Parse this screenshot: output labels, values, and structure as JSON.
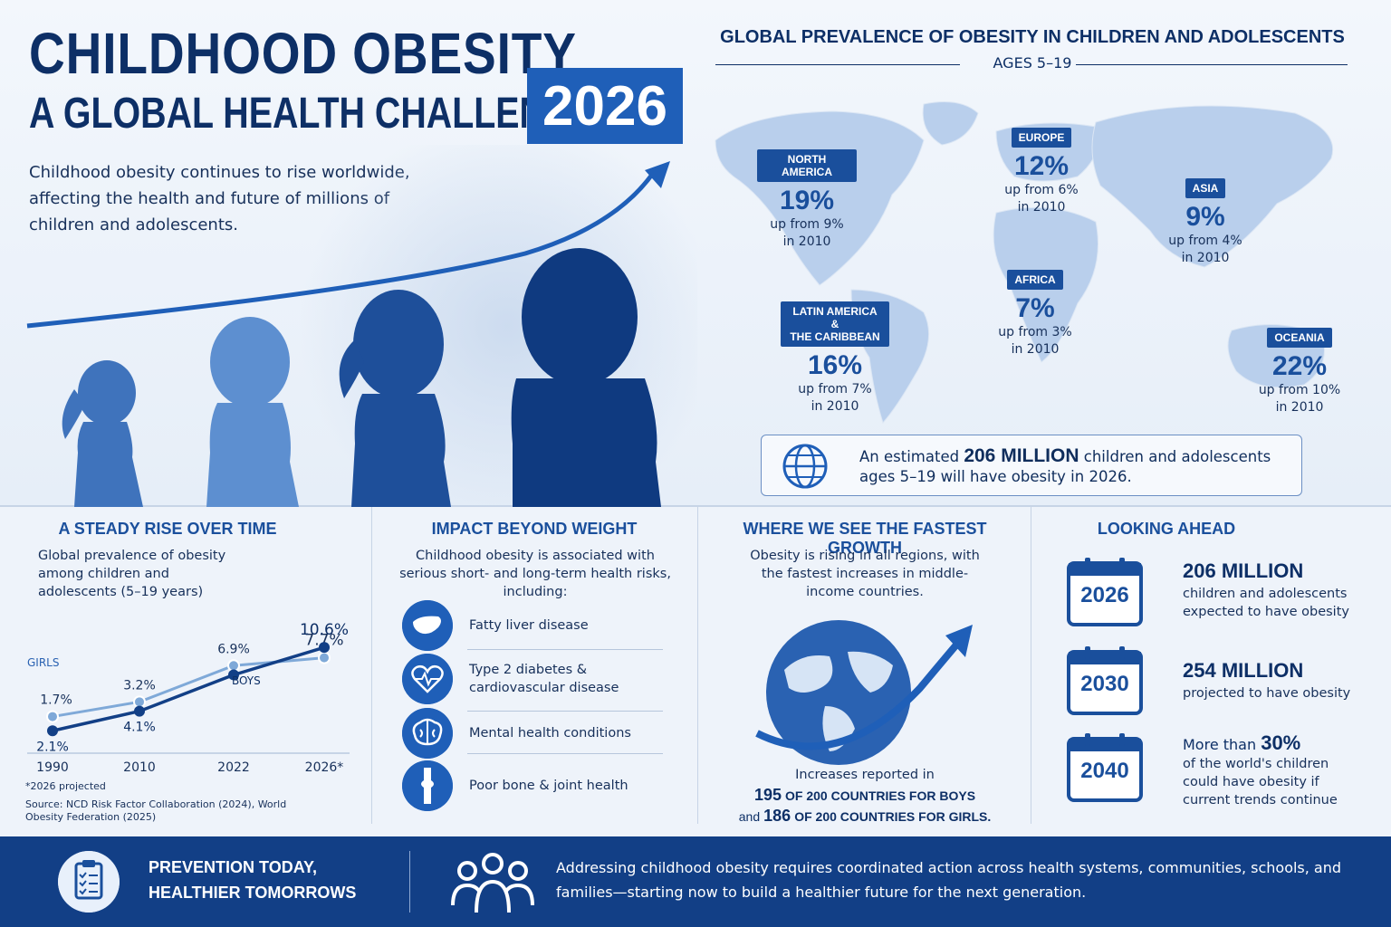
{
  "header": {
    "title_line1": "CHILDHOOD OBESITY",
    "title_line2": "A GLOBAL HEALTH CHALLENGE",
    "year": "2026",
    "intro": "Childhood obesity continues to rise worldwide, affecting the health and future of millions of children and adolescents."
  },
  "map": {
    "title": "GLOBAL PREVALENCE OF OBESITY IN CHILDREN AND ADOLESCENTS",
    "subtitle": "AGES 5–19",
    "regions": [
      {
        "name": "NORTH AMERICA",
        "pct": "19%",
        "up1": "up from 9%",
        "up2": "in 2010"
      },
      {
        "name": "EUROPE",
        "pct": "12%",
        "up1": "up from 6%",
        "up2": "in 2010"
      },
      {
        "name": "ASIA",
        "pct": "9%",
        "up1": "up from 4%",
        "up2": "in 2010"
      },
      {
        "name": "AFRICA",
        "pct": "7%",
        "up1": "up from 3%",
        "up2": "in 2010"
      },
      {
        "name_line1": "LATIN AMERICA &",
        "name_line2": "THE CARIBBEAN",
        "pct": "16%",
        "up1": "up from 7%",
        "up2": "in 2010"
      },
      {
        "name": "OCEANIA",
        "pct": "22%",
        "up1": "up from 10%",
        "up2": "in 2010"
      }
    ],
    "estimate_pre": "An estimated",
    "estimate_big": "206 MILLION",
    "estimate_post": "children and adolescents",
    "estimate_line2": "ages 5–19 will have obesity in 2026."
  },
  "rise": {
    "title": "A STEADY RISE OVER TIME",
    "desc": "Global prevalence of obesity among children and adolescents (5–19 years)",
    "footnote": "*2026 projected",
    "source": "Source: NCD Risk Factor Collaboration (2024), World Obesity Federation (2025)"
  },
  "chart_data": {
    "type": "line",
    "categories": [
      "1990",
      "2010",
      "2022",
      "2026*"
    ],
    "series": [
      {
        "name": "GIRLS",
        "values": [
          1.7,
          3.2,
          6.9,
          7.7
        ],
        "labels": [
          "1.7%",
          "3.2%",
          "6.9%",
          "7.7%"
        ],
        "color": "#7fa9d8"
      },
      {
        "name": "BOYS",
        "values": [
          2.1,
          4.1,
          7.8,
          10.6
        ],
        "labels": [
          "2.1%",
          "4.1%",
          "",
          "10.6%"
        ],
        "color": "#123f86"
      }
    ]
  },
  "impact": {
    "title": "IMPACT BEYOND WEIGHT",
    "desc": "Childhood obesity is associated with serious short- and long-term health risks, including:",
    "items": [
      {
        "icon": "liver-icon",
        "label": "Fatty liver disease"
      },
      {
        "icon": "heart-pulse-icon",
        "label": "Type 2 diabetes & cardiovascular disease"
      },
      {
        "icon": "brain-icon",
        "label": "Mental health conditions"
      },
      {
        "icon": "joint-icon",
        "label": "Poor bone & joint health"
      }
    ]
  },
  "growth": {
    "title": "WHERE WE SEE THE FASTEST GROWTH",
    "desc": "Obesity is rising in all regions, with the fastest increases in middle-income countries.",
    "inc_line": "Increases reported in",
    "boys_num": "195",
    "boys_text": "OF 200 COUNTRIES FOR BOYS",
    "girls_pre": "and",
    "girls_num": "186",
    "girls_text": "OF 200 COUNTRIES FOR GIRLS."
  },
  "ahead": {
    "title": "LOOKING AHEAD",
    "items": [
      {
        "year": "2026",
        "big": "206 MILLION",
        "desc": "children and adolescents expected to have obesity"
      },
      {
        "year": "2030",
        "big": "254 MILLION",
        "desc": "projected to have obesity"
      },
      {
        "year": "2040",
        "pre": "More than",
        "big": "30%",
        "desc": "of the world's children could have obesity if current trends continue"
      }
    ]
  },
  "footer": {
    "slogan1": "PREVENTION TODAY,",
    "slogan2": "HEALTHIER TOMORROWS",
    "msg": "Addressing childhood obesity requires coordinated action across health systems, communities, schools, and families—starting now to build a healthier future for the next generation."
  },
  "colors": {
    "navy": "#0d2f66",
    "accent": "#1f5fb8",
    "light": "#7fa9d8",
    "footer": "#123f86"
  }
}
